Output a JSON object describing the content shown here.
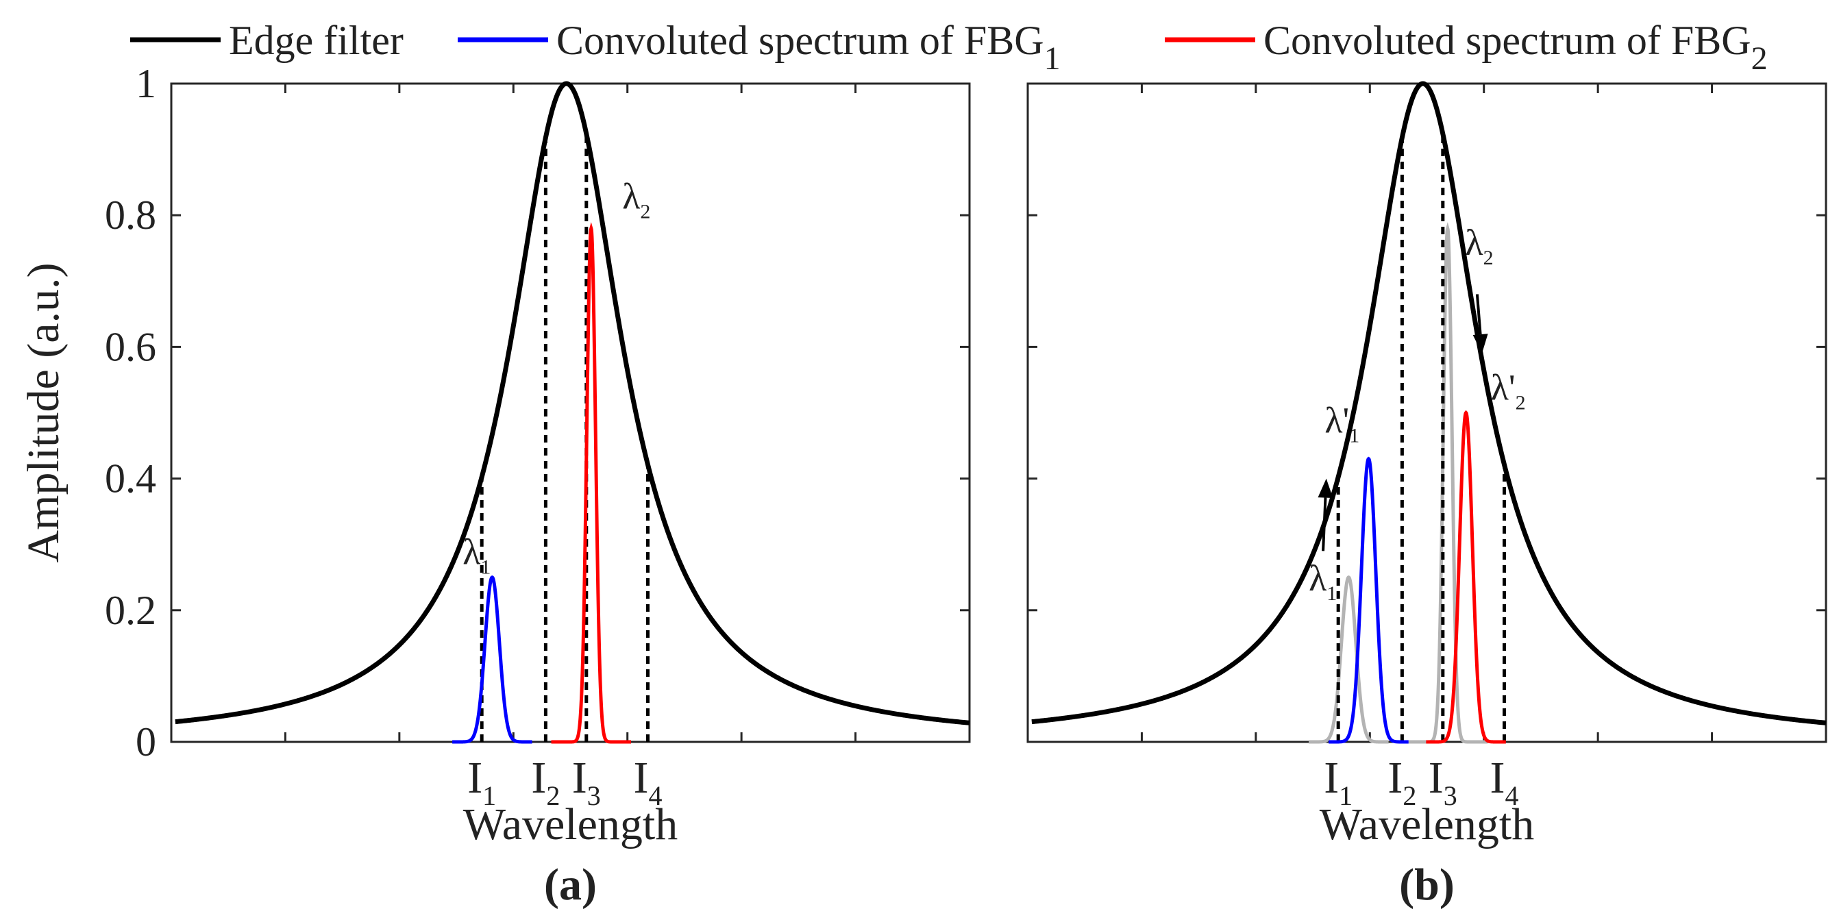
{
  "chart_data": {
    "type": "line",
    "legend": {
      "placement": "top",
      "entries": [
        {
          "label": "Edge filter",
          "color": "#000000"
        },
        {
          "label": "Convoluted spectrum of FBG",
          "sub": "1",
          "color": "#0000ff"
        },
        {
          "label": "Convoluted spectrum of FBG",
          "sub": "2",
          "color": "#ff0000"
        }
      ]
    },
    "ylabel": "Amplitude (a.u.)",
    "xlabel": "Wavelength",
    "ylim": [
      0,
      1
    ],
    "xlim": [
      0,
      100
    ],
    "yticks": [
      "0",
      "0.2",
      "0.4",
      "0.6",
      "0.8",
      "1"
    ],
    "edge_filter": {
      "center": 49.5,
      "width": 8.7,
      "peak": 1.0
    },
    "panels": [
      {
        "label": "(a)",
        "fbg1": {
          "center": 40.2,
          "width": 0.9,
          "peak": 0.25
        },
        "fbg2": {
          "center": 52.6,
          "width": 0.55,
          "peak": 0.78
        },
        "intensity_markers": [
          {
            "main": "I",
            "sub": "1",
            "x": 38.9
          },
          {
            "main": "I",
            "sub": "2",
            "x": 46.9
          },
          {
            "main": "I",
            "sub": "3",
            "x": 52.0
          },
          {
            "main": "I",
            "sub": "4",
            "x": 59.7
          }
        ],
        "annotations": [
          {
            "main": "λ",
            "sub": "1",
            "x": 36.5,
            "y": 0.27
          },
          {
            "main": "λ",
            "sub": "2",
            "x": 56.5,
            "y": 0.81
          }
        ]
      },
      {
        "label": "(b)",
        "fbg1_original": {
          "center": 40.2,
          "width": 0.9,
          "peak": 0.25
        },
        "fbg2_original": {
          "center": 52.6,
          "width": 0.55,
          "peak": 0.78
        },
        "fbg1": {
          "center": 42.7,
          "width": 0.9,
          "peak": 0.43
        },
        "fbg2": {
          "center": 54.9,
          "width": 0.8,
          "peak": 0.5
        },
        "intensity_markers": [
          {
            "main": "I",
            "sub": "1",
            "x": 38.9
          },
          {
            "main": "I",
            "sub": "2",
            "x": 46.9
          },
          {
            "main": "I",
            "sub": "3",
            "x": 52.0
          },
          {
            "main": "I",
            "sub": "4",
            "x": 59.7
          }
        ],
        "annotations": [
          {
            "main": "λ",
            "sub": "1",
            "x": 35.2,
            "y": 0.23
          },
          {
            "main": "λ'",
            "sub": "1",
            "x": 37.2,
            "y": 0.47
          },
          {
            "main": "λ",
            "sub": "2",
            "x": 54.8,
            "y": 0.74
          },
          {
            "main": "λ'",
            "sub": "2",
            "x": 58.0,
            "y": 0.52
          }
        ],
        "arrows": [
          {
            "from": [
              37.0,
              0.29
            ],
            "to": [
              37.4,
              0.4
            ]
          },
          {
            "from": [
              56.3,
              0.68
            ],
            "to": [
              56.9,
              0.59
            ]
          }
        ]
      }
    ]
  }
}
